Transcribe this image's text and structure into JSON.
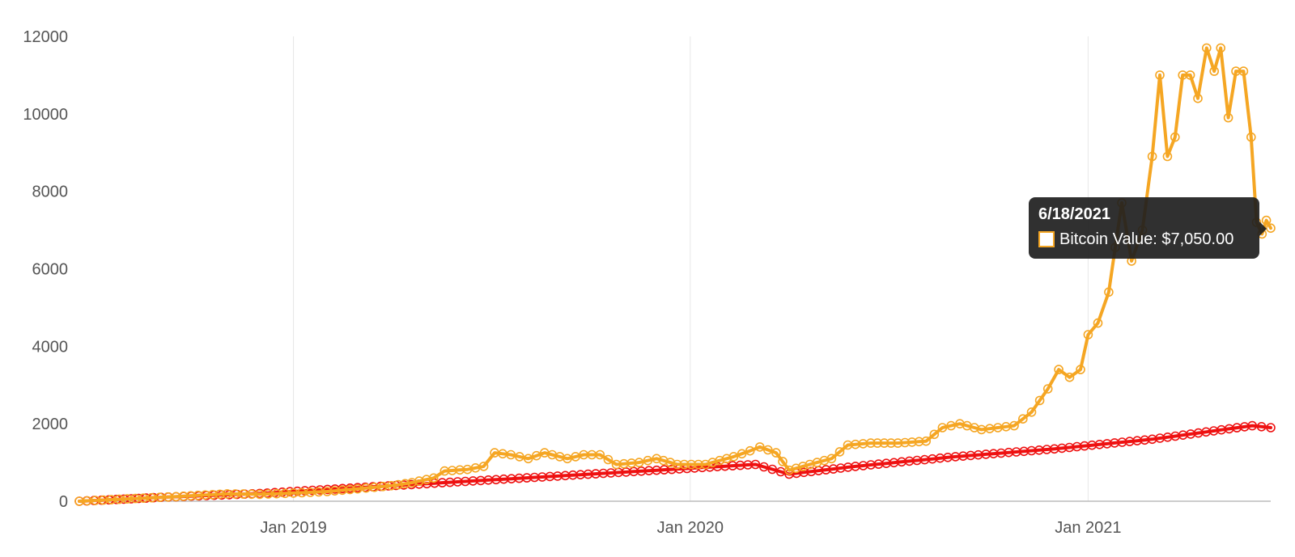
{
  "chart_data": {
    "type": "line",
    "title": "",
    "xlabel": "",
    "ylabel": "",
    "ylim": [
      0,
      12000
    ],
    "yticks": [
      "0",
      "2000",
      "4000",
      "6000",
      "8000",
      "10000",
      "12000"
    ],
    "xlim": [
      "2018-06-18",
      "2021-06-18"
    ],
    "xticks": [
      {
        "date": "2019-01-01",
        "label": "Jan 2019"
      },
      {
        "date": "2020-01-01",
        "label": "Jan 2020"
      },
      {
        "date": "2021-01-01",
        "label": "Jan 2021"
      }
    ],
    "grid": {
      "vertical": true,
      "horizontal": false
    },
    "series": [
      {
        "color": "#f5a623",
        "points": [
          [
            "2018-06-18",
            0
          ],
          [
            "2018-08-01",
            60
          ],
          [
            "2018-09-15",
            120
          ],
          [
            "2018-11-01",
            190
          ],
          [
            "2018-12-01",
            180
          ],
          [
            "2019-01-01",
            210
          ],
          [
            "2019-02-01",
            250
          ],
          [
            "2019-03-01",
            320
          ],
          [
            "2019-04-01",
            400
          ],
          [
            "2019-04-20",
            480
          ],
          [
            "2019-05-10",
            600
          ],
          [
            "2019-05-20",
            780
          ],
          [
            "2019-06-10",
            820
          ],
          [
            "2019-06-25",
            900
          ],
          [
            "2019-07-05",
            1250
          ],
          [
            "2019-07-20",
            1200
          ],
          [
            "2019-08-05",
            1100
          ],
          [
            "2019-08-20",
            1250
          ],
          [
            "2019-09-10",
            1100
          ],
          [
            "2019-09-25",
            1200
          ],
          [
            "2019-10-10",
            1200
          ],
          [
            "2019-10-25",
            950
          ],
          [
            "2019-11-15",
            1000
          ],
          [
            "2019-12-01",
            1100
          ],
          [
            "2019-12-20",
            950
          ],
          [
            "2020-01-15",
            950
          ],
          [
            "2020-02-10",
            1150
          ],
          [
            "2020-02-25",
            1300
          ],
          [
            "2020-03-05",
            1400
          ],
          [
            "2020-03-20",
            1250
          ],
          [
            "2020-04-01",
            800
          ],
          [
            "2020-04-20",
            950
          ],
          [
            "2020-05-10",
            1100
          ],
          [
            "2020-05-25",
            1450
          ],
          [
            "2020-06-15",
            1500
          ],
          [
            "2020-07-10",
            1500
          ],
          [
            "2020-08-05",
            1550
          ],
          [
            "2020-08-20",
            1900
          ],
          [
            "2020-09-05",
            2000
          ],
          [
            "2020-09-25",
            1850
          ],
          [
            "2020-10-10",
            1900
          ],
          [
            "2020-10-25",
            1950
          ],
          [
            "2020-11-10",
            2300
          ],
          [
            "2020-11-25",
            2900
          ],
          [
            "2020-12-05",
            3400
          ],
          [
            "2020-12-15",
            3200
          ],
          [
            "2020-12-25",
            3400
          ],
          [
            "2021-01-01",
            4300
          ],
          [
            "2021-01-10",
            4600
          ],
          [
            "2021-01-20",
            5400
          ],
          [
            "2021-02-01",
            7700
          ],
          [
            "2021-02-10",
            6200
          ],
          [
            "2021-02-20",
            7000
          ],
          [
            "2021-03-01",
            8900
          ],
          [
            "2021-03-08",
            11000
          ],
          [
            "2021-03-15",
            8900
          ],
          [
            "2021-03-22",
            9400
          ],
          [
            "2021-03-29",
            11000
          ],
          [
            "2021-04-05",
            11000
          ],
          [
            "2021-04-12",
            10400
          ],
          [
            "2021-04-20",
            11700
          ],
          [
            "2021-04-27",
            11100
          ],
          [
            "2021-05-03",
            11700
          ],
          [
            "2021-05-10",
            9900
          ],
          [
            "2021-05-17",
            11100
          ],
          [
            "2021-05-24",
            11100
          ],
          [
            "2021-05-31",
            9400
          ],
          [
            "2021-06-05",
            7200
          ],
          [
            "2021-06-10",
            6900
          ],
          [
            "2021-06-14",
            7250
          ],
          [
            "2021-06-18",
            7050
          ]
        ]
      },
      {
        "color": "#ee1111",
        "points": [
          [
            "2018-06-18",
            0
          ],
          [
            "2018-09-01",
            100
          ],
          [
            "2018-12-01",
            200
          ],
          [
            "2019-03-01",
            350
          ],
          [
            "2019-06-01",
            500
          ],
          [
            "2019-09-01",
            650
          ],
          [
            "2019-12-01",
            800
          ],
          [
            "2020-03-01",
            950
          ],
          [
            "2020-04-01",
            700
          ],
          [
            "2020-06-01",
            900
          ],
          [
            "2020-09-01",
            1150
          ],
          [
            "2020-12-01",
            1350
          ],
          [
            "2021-03-01",
            1600
          ],
          [
            "2021-06-01",
            1950
          ],
          [
            "2021-06-18",
            1900
          ]
        ]
      }
    ],
    "tooltip": {
      "date": "6/18/2021",
      "label": "Bitcoin Value: $7,050.00"
    }
  }
}
